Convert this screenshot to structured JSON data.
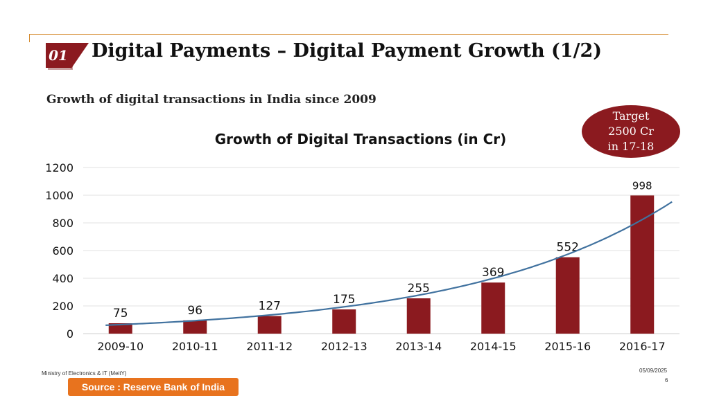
{
  "header": {
    "slide_number": "01",
    "title": "Digital Payments – Digital Payment Growth (1/2)",
    "subtitle": "Growth of digital transactions in India since 2009"
  },
  "callout": {
    "line1": "Target",
    "line2": "2500 Cr",
    "line3": "in 17-18"
  },
  "chart_data": {
    "type": "bar",
    "title": "Growth of Digital Transactions (in Cr)",
    "categories": [
      "2009-10",
      "2010-11",
      "2011-12",
      "2012-13",
      "2013-14",
      "2014-15",
      "2015-16",
      "2016-17"
    ],
    "values": [
      75,
      96,
      127,
      175,
      255,
      369,
      552,
      998
    ],
    "data_labels": [
      "75",
      "96",
      "127",
      "175",
      "255",
      "369",
      "552",
      "998"
    ],
    "ylim": [
      0,
      1200
    ],
    "yticks": [
      0,
      200,
      400,
      600,
      800,
      1000,
      1200
    ],
    "ytick_labels": [
      "0",
      "200",
      "400",
      "600",
      "800",
      "1000",
      "1200"
    ],
    "grid": true,
    "trendline": "exponential",
    "bar_color": "#8b1a1f",
    "trend_color": "#41729f"
  },
  "footer": {
    "org": "Ministry of Electronics & IT (MeitY)",
    "date": "05/09/2025",
    "page": "6",
    "source": "Source : Reserve Bank of India",
    "source_color": "#e8731e"
  }
}
